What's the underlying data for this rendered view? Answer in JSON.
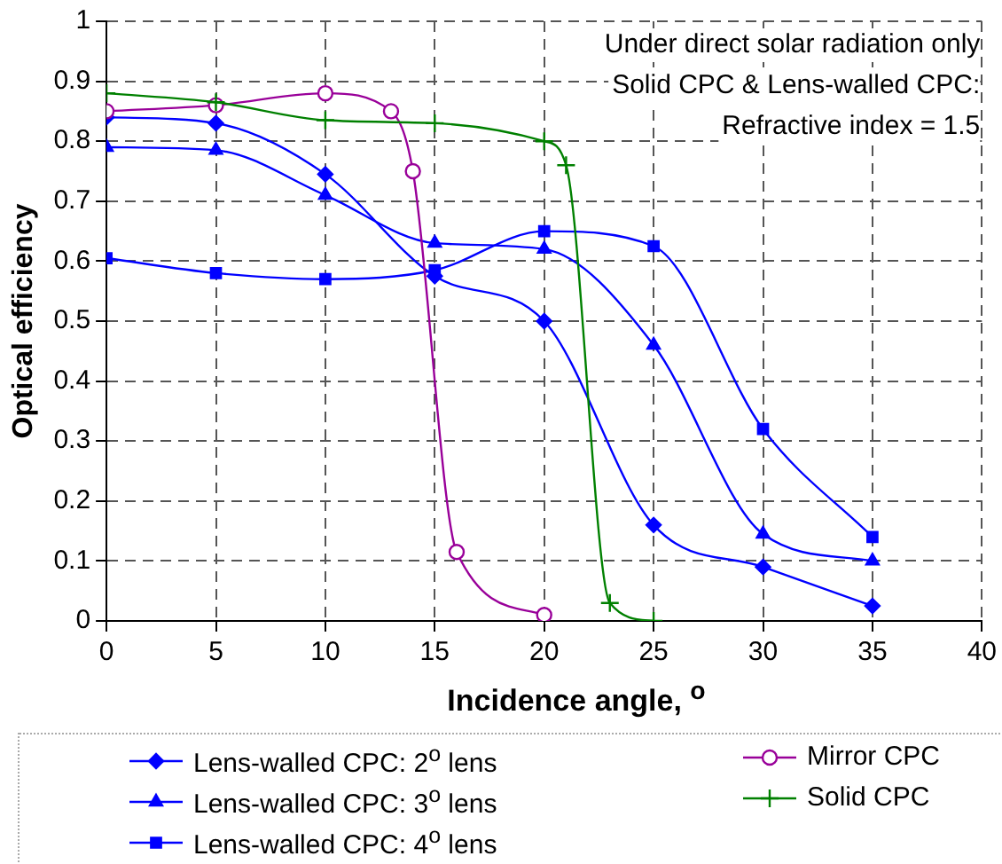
{
  "chart_data": {
    "type": "line",
    "xlabel": "Incidence angle, $^{o}$",
    "ylabel": "Optical efficiency",
    "annotations": [
      "Under direct solar radiation only",
      "Solid CPC & Lens-walled CPC:",
      "Refractive index = 1.5"
    ],
    "xlim": [
      0,
      40
    ],
    "xticks": [
      0,
      5,
      10,
      15,
      20,
      25,
      30,
      35,
      40
    ],
    "ylim": [
      0,
      1
    ],
    "yticks": [
      0,
      0.1,
      0.2,
      0.3,
      0.4,
      0.5,
      0.6,
      0.7,
      0.8,
      0.9,
      1
    ],
    "grid": true,
    "legend": "bottom",
    "line_style": "solid",
    "series": [
      {
        "name": "Lens-walled CPC: 2$^{o}$ lens",
        "color": "#0000ff",
        "marker": "diamond",
        "x": [
          0,
          5,
          10,
          15,
          20,
          25,
          30,
          35
        ],
        "values": [
          0.84,
          0.83,
          0.745,
          0.575,
          0.5,
          0.16,
          0.09,
          0.025
        ]
      },
      {
        "name": "Lens-walled CPC: 3$^{o}$ lens",
        "color": "#0000ff",
        "marker": "triangle",
        "x": [
          0,
          5,
          10,
          15,
          20,
          25,
          30,
          35
        ],
        "values": [
          0.79,
          0.785,
          0.71,
          0.63,
          0.62,
          0.46,
          0.145,
          0.1
        ]
      },
      {
        "name": "Lens-walled CPC: 4$^{o}$ lens",
        "color": "#0000ff",
        "marker": "square",
        "x": [
          0,
          5,
          10,
          15,
          20,
          25,
          30,
          35
        ],
        "values": [
          0.605,
          0.58,
          0.57,
          0.585,
          0.65,
          0.625,
          0.32,
          0.14
        ]
      },
      {
        "name": "Mirror CPC",
        "color": "#990099",
        "marker": "circle",
        "x": [
          0,
          5,
          10,
          13,
          14,
          16,
          20
        ],
        "values": [
          0.85,
          0.86,
          0.88,
          0.85,
          0.75,
          0.115,
          0.01
        ]
      },
      {
        "name": "Solid CPC",
        "color": "#008000",
        "marker": "cross",
        "x": [
          0,
          5,
          10,
          15,
          20,
          21,
          23,
          25
        ],
        "values": [
          0.88,
          0.865,
          0.835,
          0.83,
          0.8,
          0.76,
          0.03,
          0
        ]
      }
    ]
  }
}
